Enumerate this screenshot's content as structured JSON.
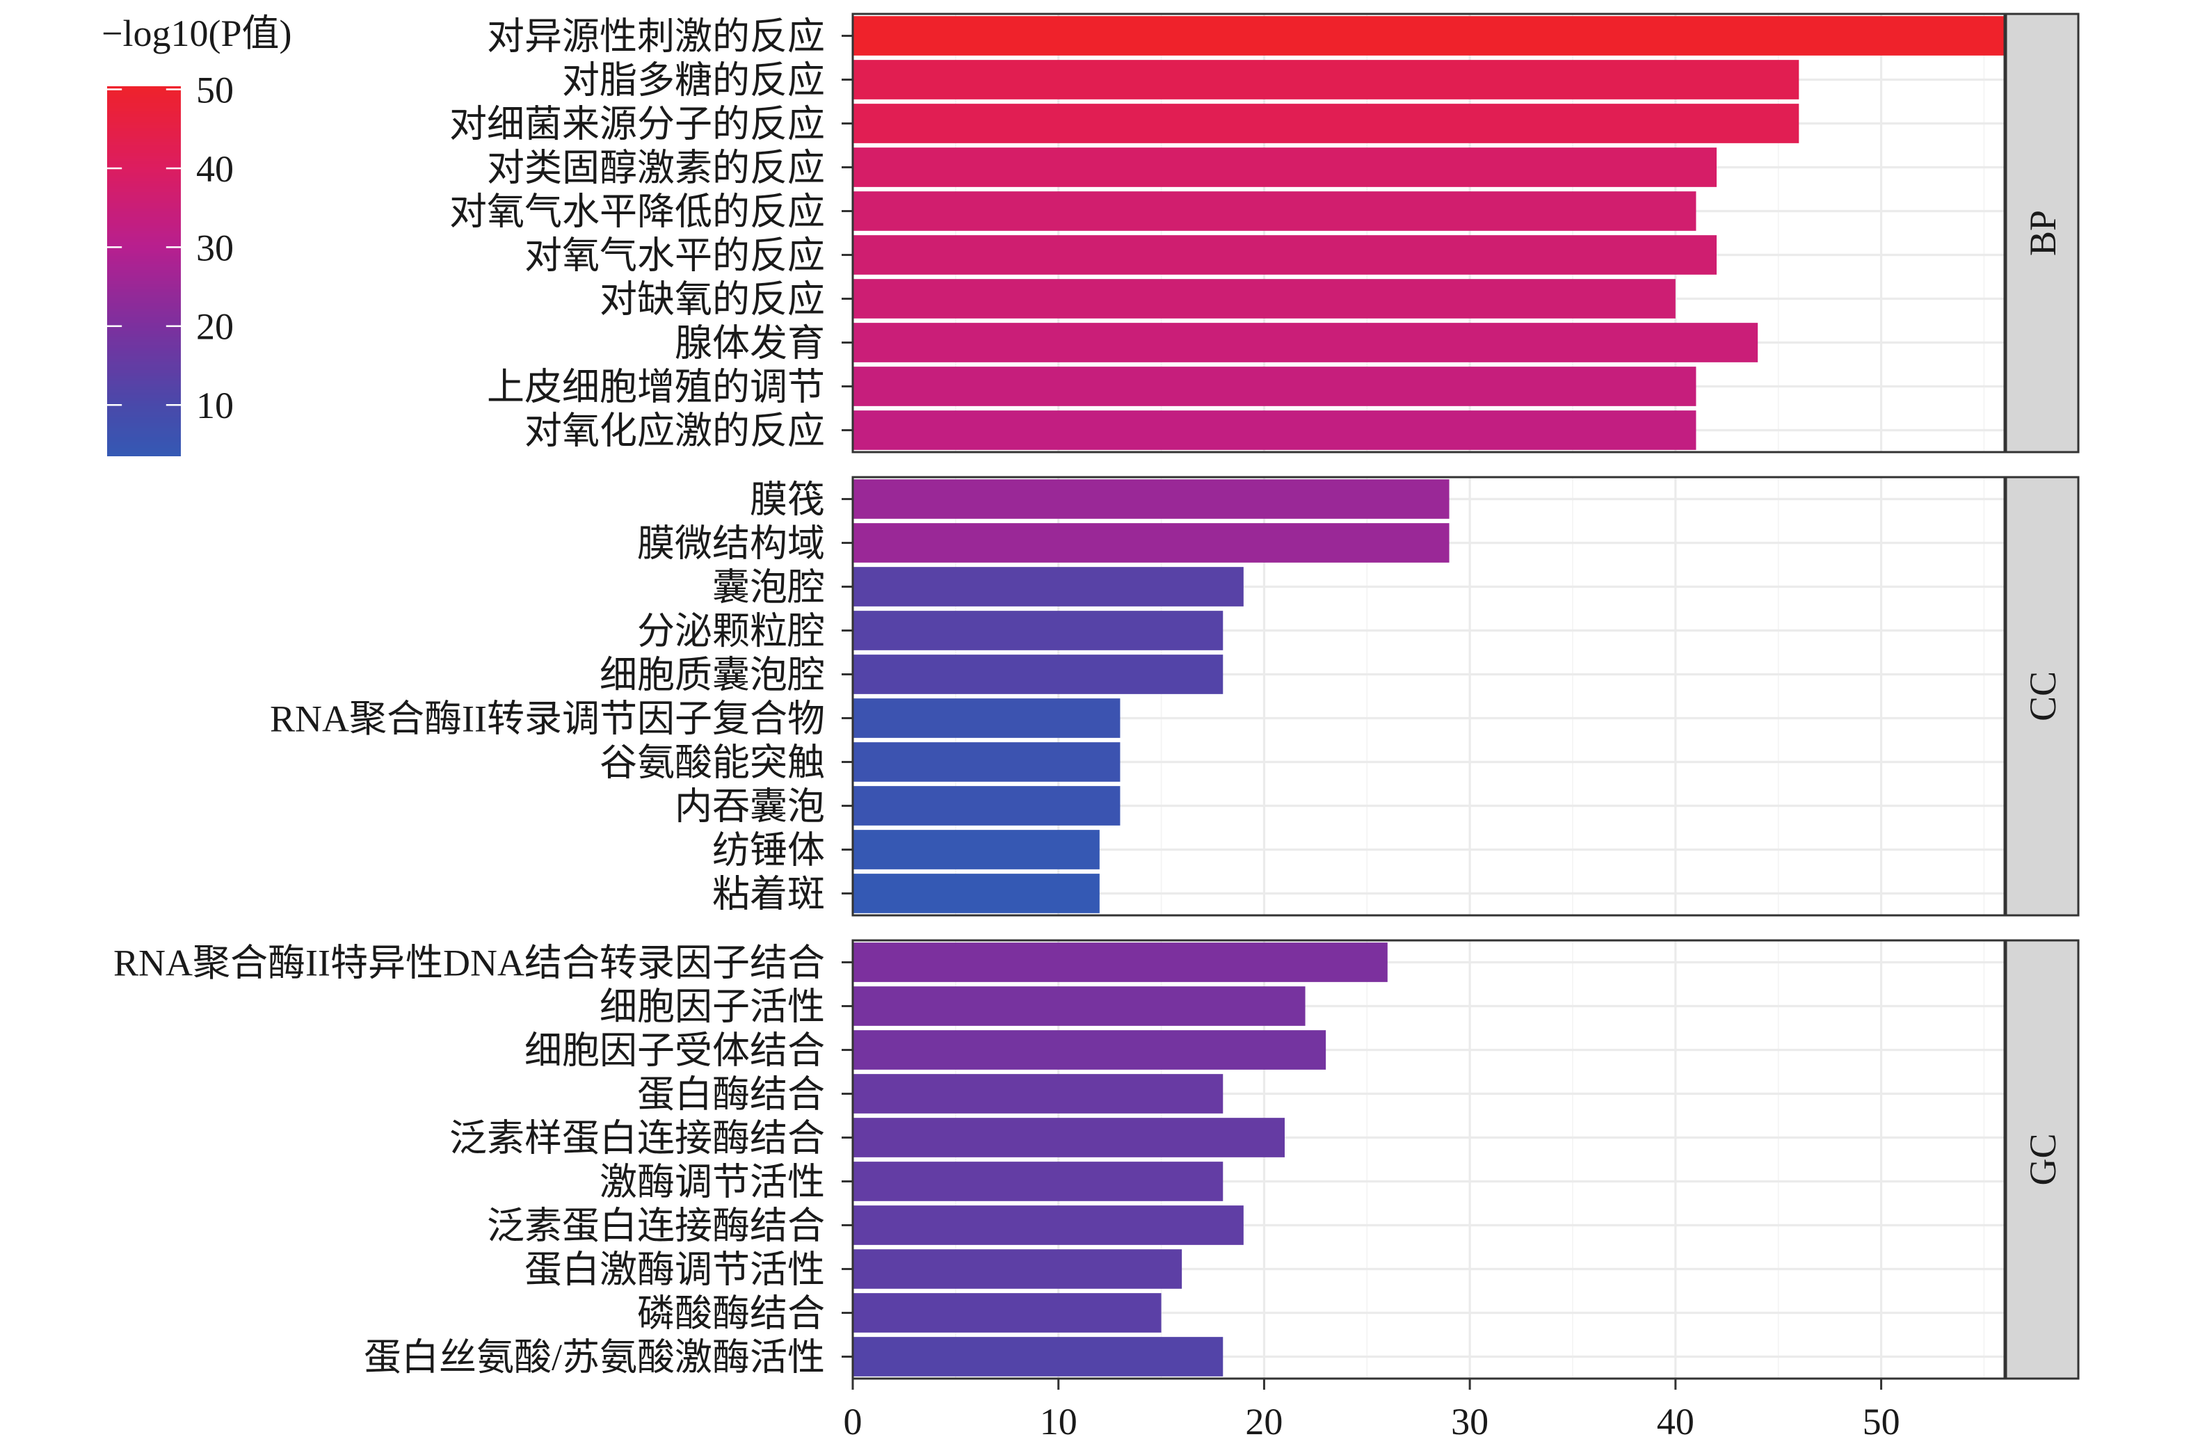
{
  "chart_data": {
    "type": "bar",
    "orientation": "horizontal",
    "xlim": [
      0,
      56
    ],
    "x_ticks": [
      0,
      10,
      20,
      30,
      40,
      50
    ],
    "x_tick_labels": [
      "0",
      "10",
      "20",
      "30",
      "40",
      "50"
    ],
    "grid": true,
    "legend_position": "top-left",
    "color_scale": {
      "title": "−log10(P值)",
      "limits": [
        3.5,
        50.4
      ],
      "ticks": [
        50,
        40,
        30,
        20,
        10
      ],
      "tick_labels": [
        "50",
        "40",
        "30",
        "20",
        "10"
      ],
      "stops": [
        {
          "value": 3.5,
          "color": "#3459B4"
        },
        {
          "value": 10,
          "color": "#4949AA"
        },
        {
          "value": 20,
          "color": "#7C309E"
        },
        {
          "value": 30,
          "color": "#B71F8F"
        },
        {
          "value": 40,
          "color": "#DC1D60"
        },
        {
          "value": 50.4,
          "color": "#EF222B"
        }
      ]
    },
    "facets": [
      {
        "label": "BP",
        "categories": [
          "对异源性刺激的反应",
          "对脂多糖的反应",
          "对细菌来源分子的反应",
          "对类固醇激素的反应",
          "对氧气水平降低的反应",
          "对氧气水平的反应",
          "对缺氧的反应",
          "腺体发育",
          "上皮细胞增殖的调节",
          "对氧化应激的反应"
        ],
        "values": [
          56,
          46,
          46,
          42,
          41,
          42,
          40,
          44,
          41,
          41
        ],
        "neg_log10_p": [
          50.4,
          43,
          42.5,
          38.5,
          37,
          36.5,
          36,
          35,
          34,
          33
        ]
      },
      {
        "label": "CC",
        "categories": [
          "膜筏",
          "膜微结构域",
          "囊泡腔",
          "分泌颗粒腔",
          "细胞质囊泡腔",
          "RNA聚合酶II转录调节因子复合物",
          "谷氨酸能突触",
          "内吞囊泡",
          "纺锤体",
          "粘着斑"
        ],
        "values": [
          29,
          29,
          19,
          18,
          18,
          13,
          13,
          13,
          12,
          12
        ],
        "neg_log10_p": [
          25,
          25,
          13,
          12.5,
          12,
          6,
          6,
          5.5,
          4,
          3.5
        ]
      },
      {
        "label": "GC",
        "categories": [
          "RNA聚合酶II特异性DNA结合转录因子结合",
          "细胞因子活性",
          "细胞因子受体结合",
          "蛋白酶结合",
          "泛素样蛋白连接酶结合",
          "激酶调节活性",
          "泛素蛋白连接酶结合",
          "蛋白激酶调节活性",
          "磷酸酶结合",
          "蛋白丝氨酸/苏氨酸激酶活性"
        ],
        "values": [
          26,
          22,
          23,
          18,
          21,
          18,
          19,
          16,
          15,
          18
        ],
        "neg_log10_p": [
          20,
          19,
          18.5,
          16,
          15.5,
          15,
          14.5,
          14,
          13.5,
          12
        ]
      }
    ]
  }
}
